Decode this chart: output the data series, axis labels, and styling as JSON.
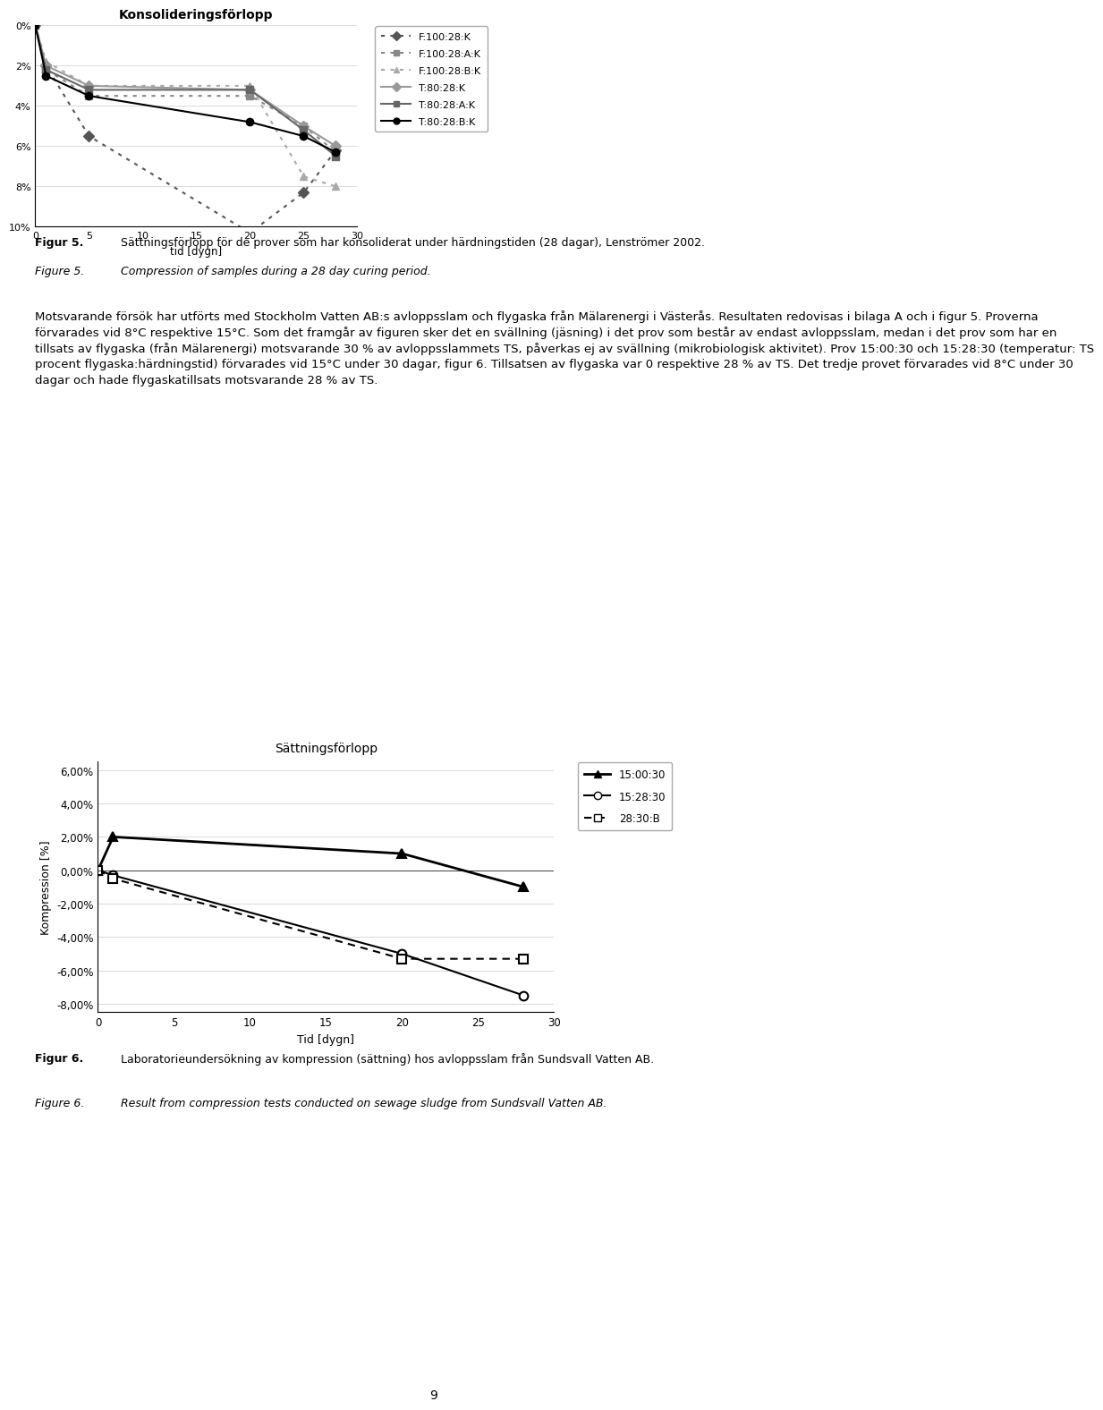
{
  "page_width": 9.6,
  "page_height": 15.78,
  "background_color": "#ffffff",
  "chart1": {
    "title": "Konsolideringsförlopp",
    "xlabel": "tid [dygn]",
    "xlim": [
      0,
      30
    ],
    "yticks_labels": [
      "0%",
      "2%",
      "4%",
      "6%",
      "8%",
      "10%"
    ],
    "yticks_vals": [
      0,
      2,
      4,
      6,
      8,
      10
    ],
    "xticks": [
      0,
      5,
      10,
      15,
      20,
      25,
      30
    ],
    "series": [
      {
        "label": "F:100:28:K",
        "x": [
          0,
          1,
          5,
          20,
          25,
          28
        ],
        "y": [
          0.0,
          2.0,
          5.5,
          10.3,
          8.3,
          6.2
        ],
        "color": "#555555",
        "linestyle": "dotted",
        "marker": "D",
        "markersize": 6,
        "linewidth": 1.5
      },
      {
        "label": "F:100:28:A:K",
        "x": [
          0,
          1,
          5,
          20,
          25,
          28
        ],
        "y": [
          0.0,
          2.2,
          3.5,
          3.5,
          5.0,
          6.3
        ],
        "color": "#888888",
        "linestyle": "dotted",
        "marker": "s",
        "markersize": 6,
        "linewidth": 1.5
      },
      {
        "label": "F:100:28:B:K",
        "x": [
          0,
          1,
          5,
          20,
          25,
          28
        ],
        "y": [
          0.0,
          1.8,
          3.0,
          3.0,
          7.5,
          8.0
        ],
        "color": "#aaaaaa",
        "linestyle": "dotted",
        "marker": "^",
        "markersize": 6,
        "linewidth": 1.5
      },
      {
        "label": "T:80:28:K",
        "x": [
          0,
          1,
          5,
          20,
          25,
          28
        ],
        "y": [
          0.0,
          2.0,
          3.0,
          3.2,
          5.0,
          6.0
        ],
        "color": "#999999",
        "linestyle": "solid",
        "marker": "D",
        "markersize": 6,
        "linewidth": 1.5
      },
      {
        "label": "T:80:28:A:K",
        "x": [
          0,
          1,
          5,
          20,
          25,
          28
        ],
        "y": [
          0.0,
          2.2,
          3.2,
          3.2,
          5.2,
          6.5
        ],
        "color": "#666666",
        "linestyle": "solid",
        "marker": "s",
        "markersize": 6,
        "linewidth": 1.5
      },
      {
        "label": "T:80:28:B:K",
        "x": [
          0,
          1,
          5,
          20,
          25,
          28
        ],
        "y": [
          0.0,
          2.5,
          3.5,
          4.8,
          5.5,
          6.3
        ],
        "color": "#000000",
        "linestyle": "solid",
        "marker": "o",
        "markersize": 6,
        "linewidth": 1.5
      }
    ]
  },
  "figur5_bold": "Figur 5.",
  "figur5_sv": "Sättningsförlopp för de prover som har konsoliderat under härdningstiden (28 dagar), Lenströmer 2002.",
  "figure5_italic": "Figure 5.",
  "figure5_en": "Compression of samples during a 28 day curing period.",
  "body_text_lines": [
    "Motsvarande försök har utförts med Stockholm Vatten AB:s avloppsslam och flygaska från Mälarenergi i Västerås. Resultaten redovisas i bilaga A och i figur 5. Proverna",
    "förvarades vid 8°C respektive 15°C. Som det framgår av figuren sker det en svällning (jäsning) i det prov som består av endast avloppsslam, medan i det prov som har en",
    "tillsats av flygaska (från Mälarenergi) motsvarande 30 % av avloppsslammets TS, påverkas ej av svällning (mikrobiologisk aktivitet). Prov 15:00:30 och 15:28:30 (temperatur: TS",
    "procent flygaska:härdningstid) förvarades vid 15°C under 30 dagar, figur 6. Tillsatsen av flygaska var 0 respektive 28 % av TS. Det tredje provet förvarades vid 8°C under 30",
    "dagar och hade flygaskatillsats motsvarande 28 % av TS."
  ],
  "chart2": {
    "title": "Sättningsförlopp",
    "xlabel": "Tid [dygn]",
    "ylabel": "Kompression [%]",
    "xlim": [
      0,
      30
    ],
    "ylim": [
      -8.5,
      6.5
    ],
    "yticks_vals": [
      -8,
      -6,
      -4,
      -2,
      0,
      2,
      4,
      6
    ],
    "yticks_labels": [
      "-8,00%",
      "-6,00%",
      "-4,00%",
      "-2,00%",
      "0,00%",
      "2,00%",
      "4,00%",
      "6,00%"
    ],
    "xticks": [
      0,
      5,
      10,
      15,
      20,
      25,
      30
    ],
    "series": [
      {
        "label": "15:00:30",
        "x": [
          0,
          1,
          20,
          28
        ],
        "y": [
          0.0,
          2.0,
          1.0,
          -1.0
        ],
        "color": "#000000",
        "linestyle": "solid",
        "marker": "^",
        "markersize": 7,
        "linewidth": 2.0,
        "markerfilled": true
      },
      {
        "label": "15:28:30",
        "x": [
          0,
          1,
          20,
          28
        ],
        "y": [
          0.0,
          -0.3,
          -5.0,
          -7.5
        ],
        "color": "#000000",
        "linestyle": "solid",
        "marker": "o",
        "markersize": 7,
        "linewidth": 1.5,
        "markerfilled": false
      },
      {
        "label": "28:30:B",
        "x": [
          0,
          1,
          20,
          28
        ],
        "y": [
          0.0,
          -0.5,
          -5.3,
          -5.3
        ],
        "color": "#000000",
        "linestyle": "dotted",
        "marker": "s",
        "markersize": 7,
        "linewidth": 1.5,
        "markerfilled": false
      }
    ]
  },
  "figur6_bold": "Figur 6.",
  "figur6_sv": "Laboratorieundersökning av kompression (sättning) hos avloppsslam från Sundsvall Vatten AB.",
  "figure6_italic": "Figure 6.",
  "figure6_en": "Result from compression tests conducted on sewage sludge from Sundsvall Vatten AB.",
  "page_number": "9"
}
